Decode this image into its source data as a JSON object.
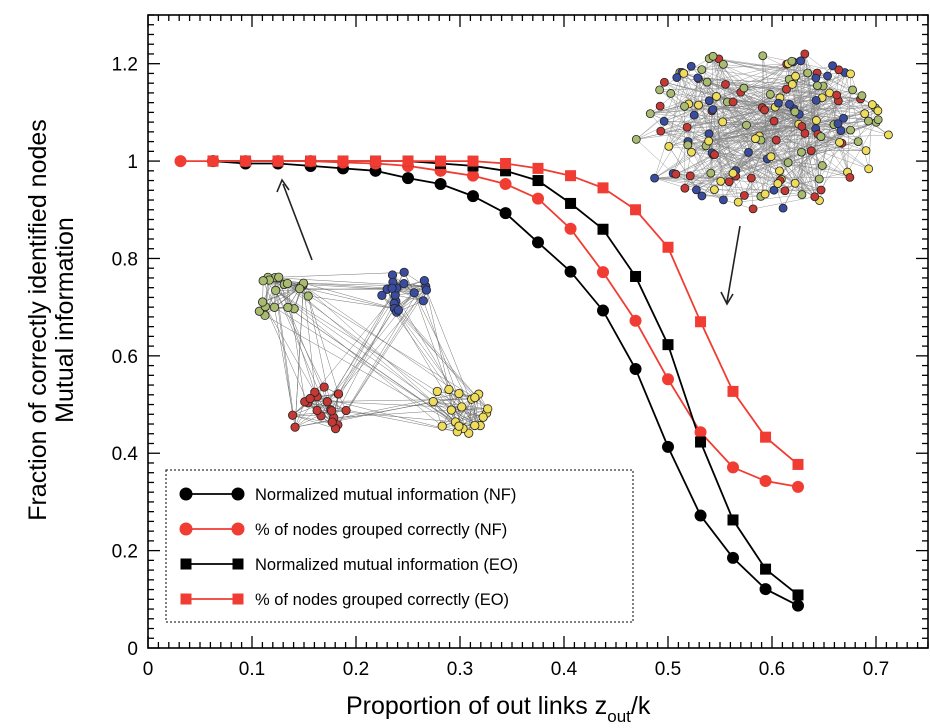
{
  "chart_data": {
    "type": "line",
    "xlabel": "Proportion of out links z",
    "xlabel_sub": "out",
    "xlabel_suffix": "/k",
    "ylabel_line1": "Fraction of correctly identified nodes",
    "ylabel_line2": "Mutual information",
    "xlim": [
      0,
      0.75
    ],
    "ylim": [
      0,
      1.3
    ],
    "x_ticks": [
      0,
      0.1,
      0.2,
      0.3,
      0.4,
      0.5,
      0.6,
      0.7
    ],
    "x_tick_labels": [
      "0",
      "0.1",
      "0.2",
      "0.3",
      "0.4",
      "0.5",
      "0.6",
      "0.7"
    ],
    "y_ticks": [
      0,
      0.2,
      0.4,
      0.6,
      0.8,
      1,
      1.2
    ],
    "y_tick_labels": [
      "0",
      "0.2",
      "0.4",
      "0.6",
      "0.8",
      "1",
      "1.2"
    ],
    "grid": false,
    "legend_position": "bottom-left",
    "series": [
      {
        "name": "Normalized mutual information (NF)",
        "color": "#000000",
        "marker": "circle",
        "x": [
          0.0625,
          0.0938,
          0.125,
          0.1563,
          0.1875,
          0.2188,
          0.25,
          0.2813,
          0.3125,
          0.3438,
          0.375,
          0.4063,
          0.4375,
          0.4688,
          0.5,
          0.5313,
          0.5625,
          0.5938,
          0.625
        ],
        "y": [
          1.0,
          0.995,
          0.995,
          0.99,
          0.985,
          0.98,
          0.965,
          0.953,
          0.928,
          0.893,
          0.833,
          0.773,
          0.693,
          0.573,
          0.413,
          0.272,
          0.185,
          0.121,
          0.087
        ]
      },
      {
        "name": "% of nodes grouped correctly (NF)",
        "color": "#f03c32",
        "marker": "circle",
        "x": [
          0.03125,
          0.0625,
          0.0938,
          0.125,
          0.1563,
          0.1875,
          0.2188,
          0.25,
          0.2813,
          0.3125,
          0.3438,
          0.375,
          0.4063,
          0.4375,
          0.4688,
          0.5,
          0.5313,
          0.5625,
          0.5938,
          0.625
        ],
        "y": [
          1.0,
          1.0,
          1.0,
          1.0,
          1.0,
          0.997,
          0.995,
          0.99,
          0.98,
          0.97,
          0.953,
          0.923,
          0.861,
          0.772,
          0.672,
          0.552,
          0.443,
          0.371,
          0.343,
          0.331
        ]
      },
      {
        "name": "Normalized mutual information (EO)",
        "color": "#000000",
        "marker": "square",
        "x": [
          0.0625,
          0.0938,
          0.125,
          0.1563,
          0.1875,
          0.2188,
          0.25,
          0.2813,
          0.3125,
          0.3438,
          0.375,
          0.4063,
          0.4375,
          0.4688,
          0.5,
          0.5313,
          0.5625,
          0.5938,
          0.625
        ],
        "y": [
          1.0,
          1.0,
          1.0,
          1.0,
          1.0,
          1.0,
          1.0,
          0.995,
          0.99,
          0.98,
          0.96,
          0.913,
          0.86,
          0.763,
          0.623,
          0.423,
          0.263,
          0.162,
          0.109
        ]
      },
      {
        "name": "% of nodes grouped correctly (EO)",
        "color": "#f03c32",
        "marker": "square",
        "x": [
          0.0625,
          0.0938,
          0.125,
          0.1563,
          0.1875,
          0.2188,
          0.25,
          0.2813,
          0.3125,
          0.3438,
          0.375,
          0.4063,
          0.4375,
          0.4688,
          0.5,
          0.5313,
          0.5625,
          0.5938,
          0.625
        ],
        "y": [
          1.0,
          1.0,
          1.0,
          1.0,
          1.0,
          1.0,
          1.0,
          1.0,
          1.0,
          0.995,
          0.985,
          0.97,
          0.945,
          0.9,
          0.823,
          0.67,
          0.527,
          0.433,
          0.377
        ]
      }
    ],
    "insets": [
      {
        "description_icon": "network-graph-four-communities",
        "community_colors": [
          "#a8bb6e",
          "#3a4ca0",
          "#c63834",
          "#eedc5a"
        ]
      },
      {
        "description_icon": "network-graph-mixed-communities",
        "community_colors": [
          "#a8bb6e",
          "#3a4ca0",
          "#c63834",
          "#eedc5a"
        ]
      }
    ]
  }
}
